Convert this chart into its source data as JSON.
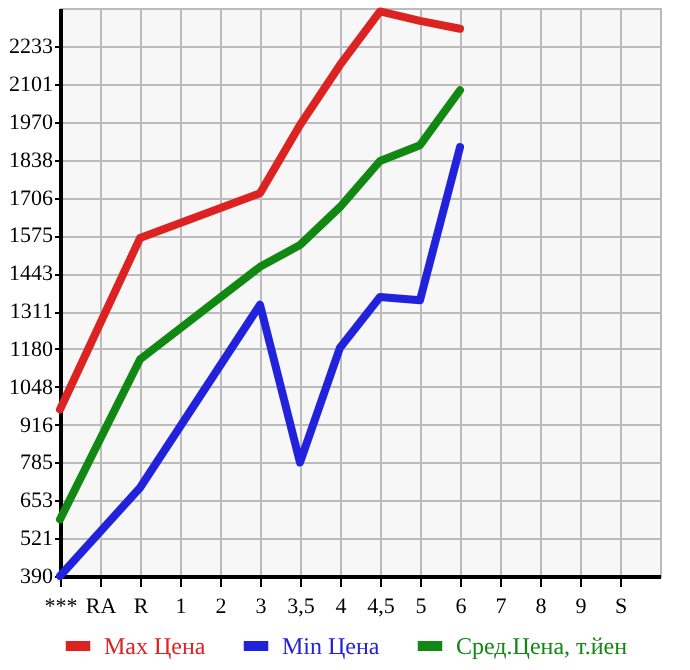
{
  "chart_data": {
    "type": "line",
    "categories": [
      "***",
      "RA",
      "R",
      "1",
      "2",
      "3",
      "3,5",
      "4",
      "4,5",
      "5",
      "6",
      "7",
      "8",
      "9",
      "S"
    ],
    "series": [
      {
        "name": "Max Цена",
        "color": "#dd2222",
        "values": [
          969,
          null,
          1565,
          null,
          null,
          1721,
          1958,
          2167,
          2353,
          2320,
          2293,
          null,
          null,
          null,
          null
        ]
      },
      {
        "name": "Min Цена",
        "color": "#2222dd",
        "values": [
          390,
          null,
          697,
          null,
          null,
          1333,
          785,
          1184,
          1360,
          1349,
          1881,
          null,
          null,
          null,
          null
        ]
      },
      {
        "name": "Сред.Цена, т.йен",
        "color": "#118811",
        "values": [
          587,
          null,
          1143,
          null,
          null,
          1465,
          1541,
          1673,
          1833,
          1888,
          2079,
          null,
          null,
          null,
          null
        ]
      }
    ],
    "ylim": [
      390,
      2365
    ],
    "yticks": [
      390,
      521,
      653,
      785,
      916,
      1048,
      1180,
      1311,
      1443,
      1575,
      1706,
      1838,
      1970,
      2101,
      2233
    ],
    "grid": true,
    "legend": "bottom",
    "marker": "none",
    "line_style": "solid"
  }
}
